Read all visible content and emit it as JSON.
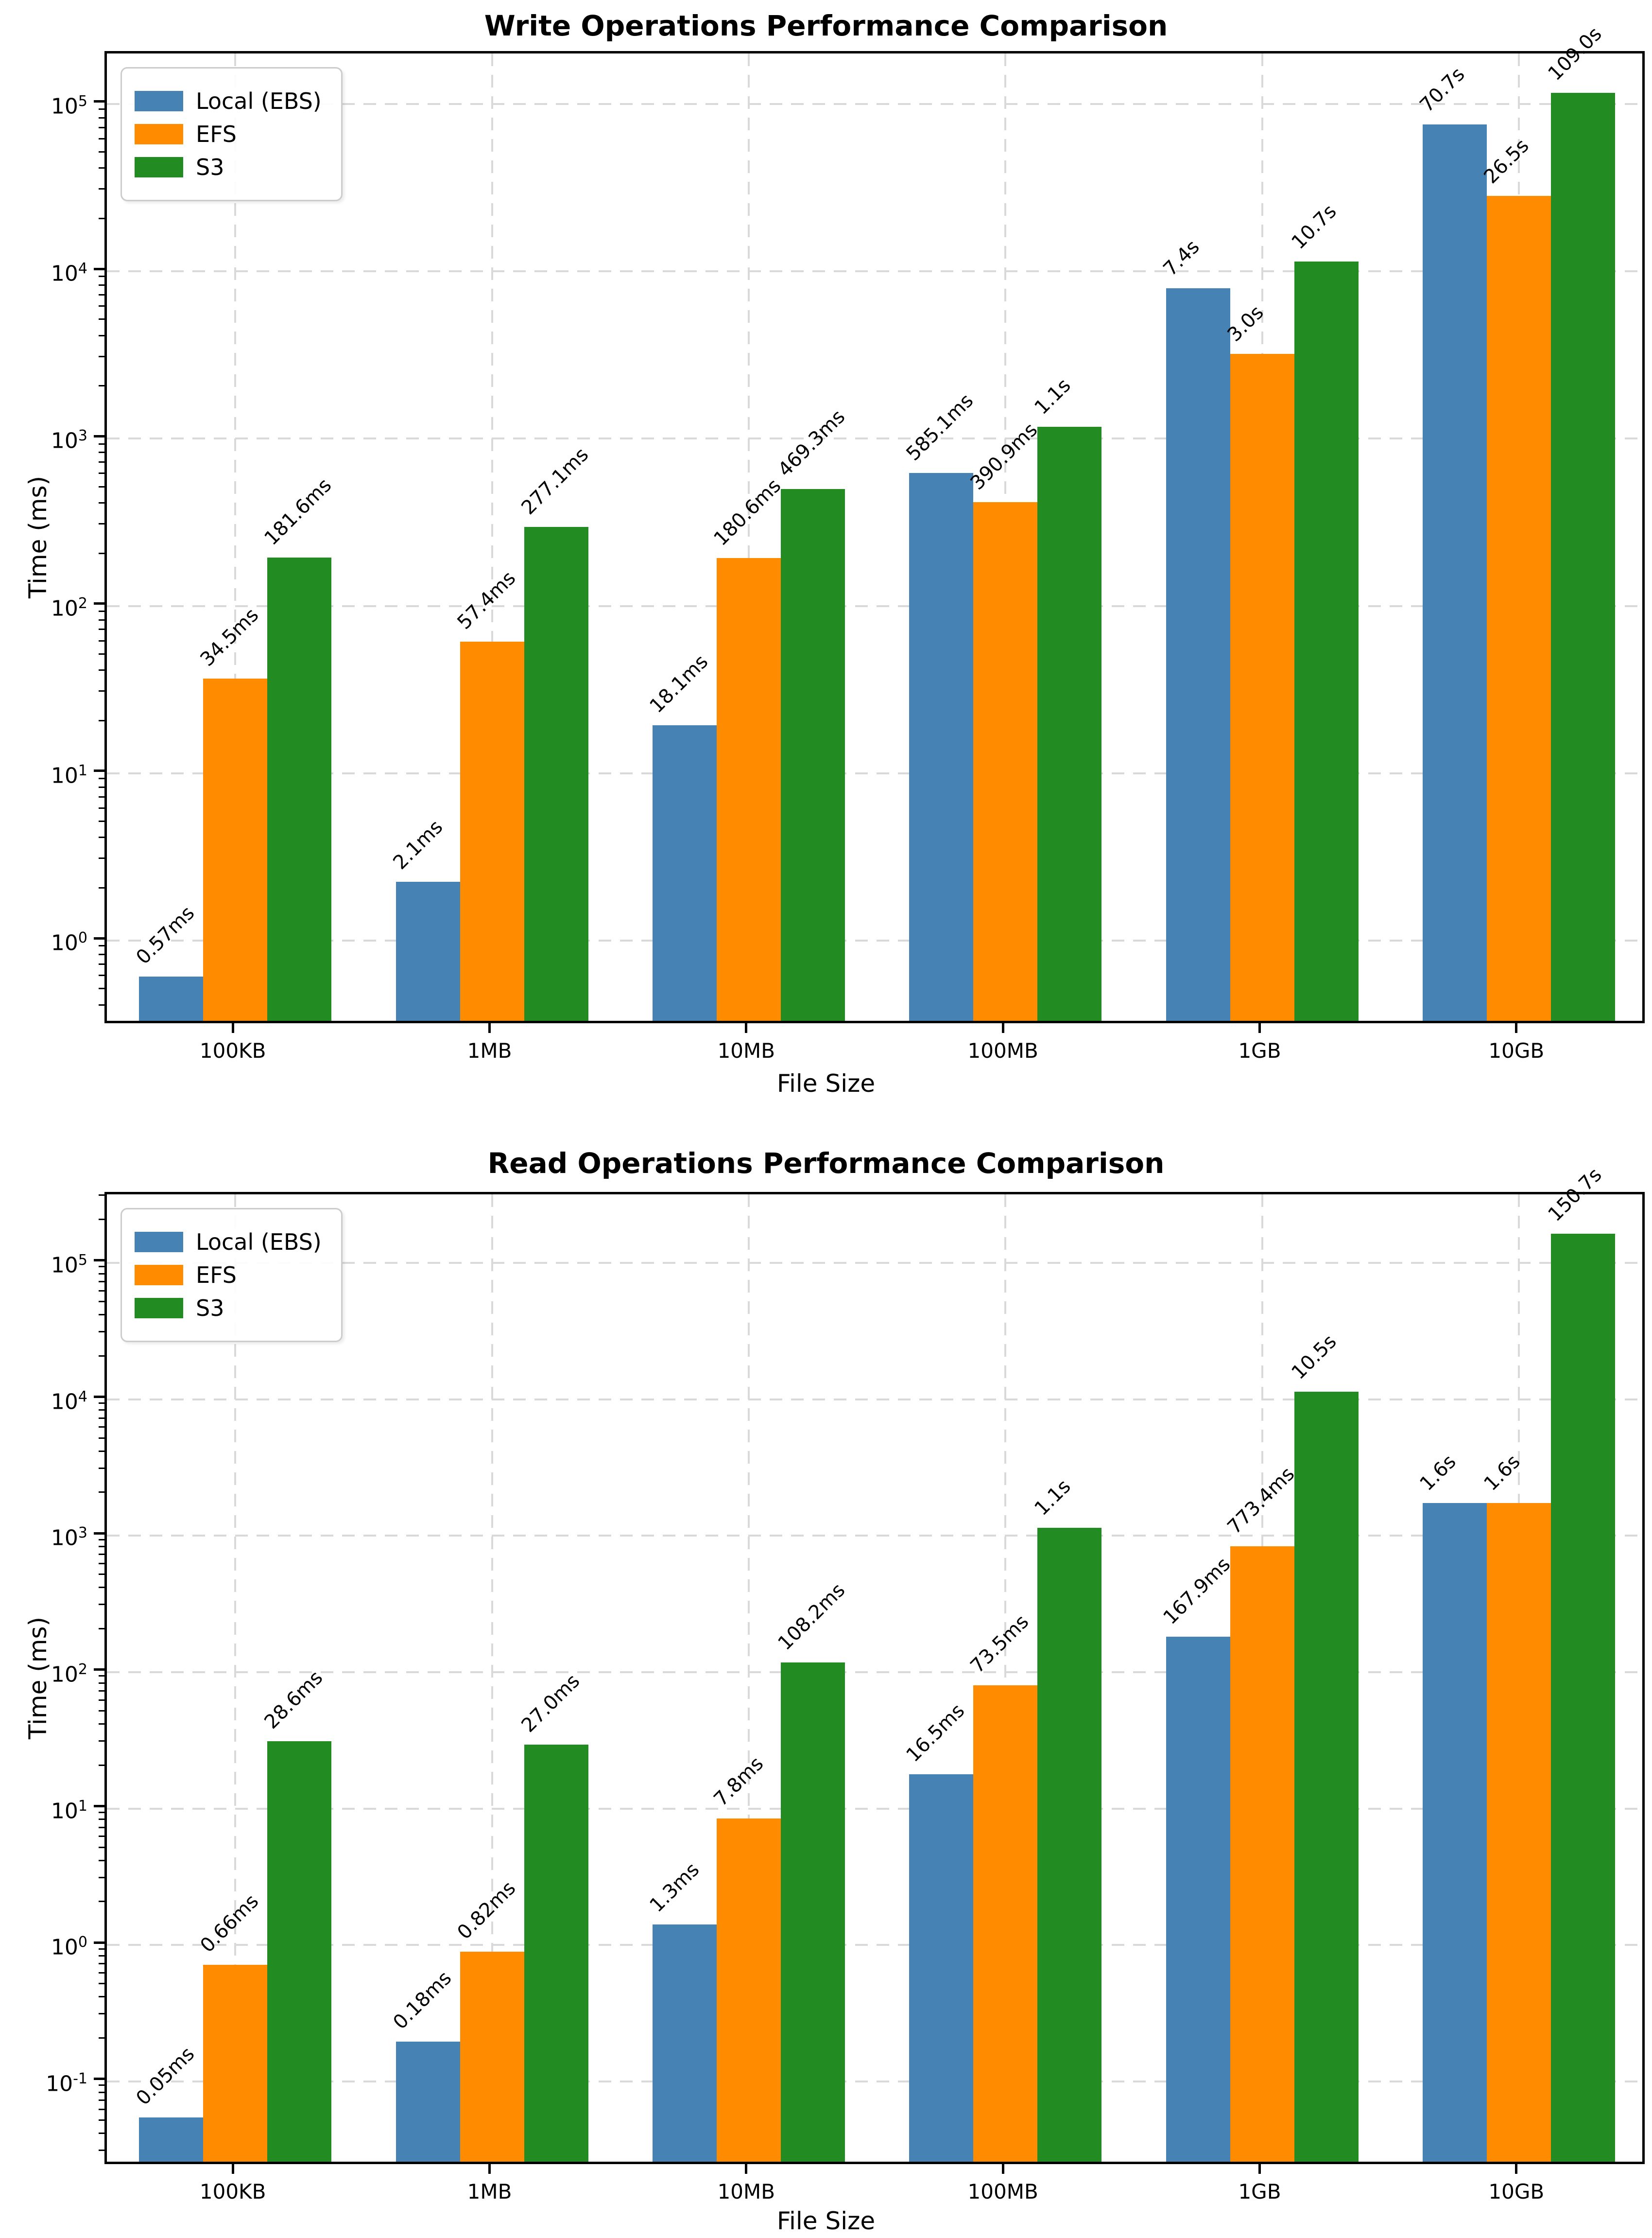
{
  "figure": {
    "background": "#ffffff",
    "font_color": "#000000",
    "grid_color": "#d9d9d9",
    "spine_color": "#000000"
  },
  "chart_data": [
    {
      "type": "bar",
      "title": "Write Operations Performance Comparison",
      "xlabel": "File Size",
      "ylabel": "Time (ms)",
      "y_scale": "log",
      "grid": true,
      "legend_position": "upper left",
      "categories": [
        "100KB",
        "1MB",
        "10MB",
        "100MB",
        "1GB",
        "10GB"
      ],
      "y_tick_exponents": [
        0,
        1,
        2,
        3,
        4,
        5
      ],
      "ylim_log10": [
        -0.508,
        5.302
      ],
      "series": [
        {
          "name": "Local (EBS)",
          "color": "#4682B4",
          "values_ms": [
            0.57,
            2.1,
            18.1,
            585.1,
            7400,
            70700
          ],
          "labels": [
            "0.57ms",
            "2.1ms",
            "18.1ms",
            "585.1ms",
            "7.4s",
            "70.7s"
          ]
        },
        {
          "name": "EFS",
          "color": "#FF8C00",
          "values_ms": [
            34.5,
            57.4,
            180.6,
            390.9,
            3000,
            26500
          ],
          "labels": [
            "34.5ms",
            "57.4ms",
            "180.6ms",
            "390.9ms",
            "3.0s",
            "26.5s"
          ]
        },
        {
          "name": "S3",
          "color": "#228B22",
          "values_ms": [
            181.6,
            277.1,
            469.3,
            1100,
            10700,
            109000
          ],
          "labels": [
            "181.6ms",
            "277.1ms",
            "469.3ms",
            "1.1s",
            "10.7s",
            "109.0s"
          ]
        }
      ]
    },
    {
      "type": "bar",
      "title": "Read Operations Performance Comparison",
      "xlabel": "File Size",
      "ylabel": "Time (ms)",
      "y_scale": "log",
      "grid": true,
      "legend_position": "upper left",
      "categories": [
        "100KB",
        "1MB",
        "10MB",
        "100MB",
        "1GB",
        "10GB"
      ],
      "y_tick_exponents": [
        -1,
        0,
        1,
        2,
        3,
        4,
        5
      ],
      "ylim_log10": [
        -1.624,
        5.502
      ],
      "series": [
        {
          "name": "Local (EBS)",
          "color": "#4682B4",
          "values_ms": [
            0.05,
            0.18,
            1.3,
            16.5,
            167.9,
            1600
          ],
          "labels": [
            "0.05ms",
            "0.18ms",
            "1.3ms",
            "16.5ms",
            "167.9ms",
            "1.6s"
          ]
        },
        {
          "name": "EFS",
          "color": "#FF8C00",
          "values_ms": [
            0.66,
            0.82,
            7.8,
            73.5,
            773.4,
            1600
          ],
          "labels": [
            "0.66ms",
            "0.82ms",
            "7.8ms",
            "73.5ms",
            "773.4ms",
            "1.6s"
          ]
        },
        {
          "name": "S3",
          "color": "#228B22",
          "values_ms": [
            28.6,
            27.0,
            108.2,
            1050,
            10500,
            150700
          ],
          "labels": [
            "28.6ms",
            "27.0ms",
            "108.2ms",
            "1.1s",
            "10.5s",
            "150.7s"
          ]
        }
      ]
    }
  ]
}
